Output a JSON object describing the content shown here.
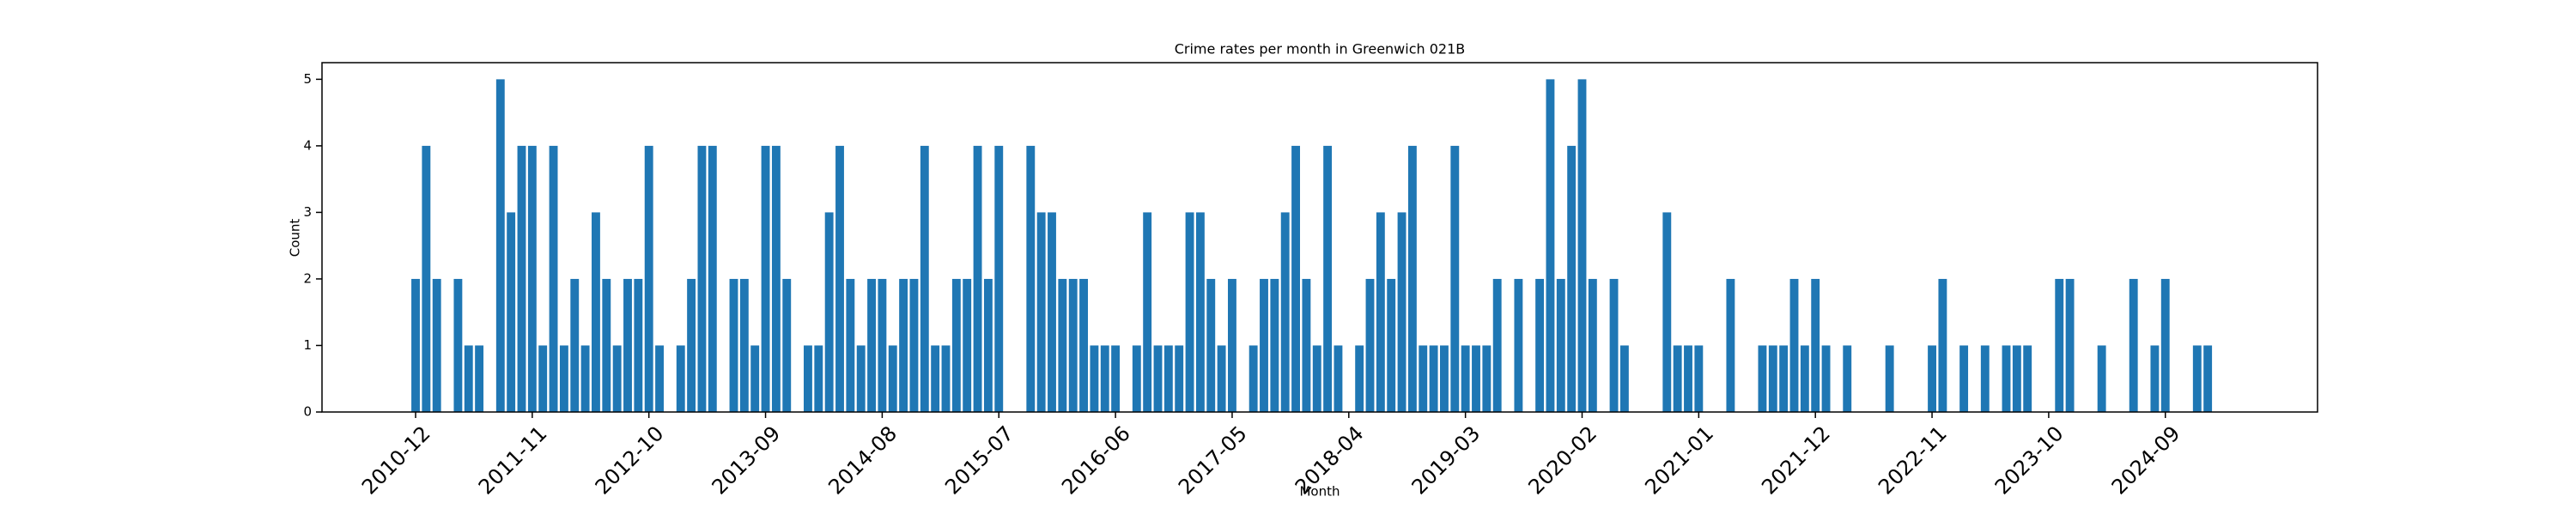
{
  "chart_data": {
    "type": "bar",
    "title": "Crime rates per month in Greenwich 021B",
    "x_label": "Month",
    "y_label": "Count",
    "color": "#1f77b4",
    "categories": [
      "2010-12",
      null,
      null,
      null,
      null,
      null,
      null,
      null,
      null,
      null,
      null,
      "2011-11",
      null,
      null,
      null,
      null,
      null,
      null,
      null,
      null,
      null,
      null,
      "2012-10",
      null,
      null,
      null,
      null,
      null,
      null,
      null,
      null,
      null,
      null,
      "2013-09",
      null,
      null,
      null,
      null,
      null,
      null,
      null,
      null,
      null,
      null,
      "2014-08",
      null,
      null,
      null,
      null,
      null,
      null,
      null,
      null,
      null,
      null,
      "2015-07",
      null,
      null,
      null,
      null,
      null,
      null,
      null,
      null,
      null,
      null,
      "2016-06",
      null,
      null,
      null,
      null,
      null,
      null,
      null,
      null,
      null,
      null,
      "2017-05",
      null,
      null,
      null,
      null,
      null,
      null,
      null,
      null,
      null,
      null,
      "2018-04",
      null,
      null,
      null,
      null,
      null,
      null,
      null,
      null,
      null,
      null,
      "2019-03",
      null,
      null,
      null,
      null,
      null,
      null,
      null,
      null,
      null,
      null,
      "2020-02",
      null,
      null,
      null,
      null,
      null,
      null,
      null,
      null,
      null,
      null,
      "2021-01",
      null,
      null,
      null,
      null,
      null,
      null,
      null,
      null,
      null,
      null,
      "2021-12",
      null,
      null,
      null,
      null,
      null,
      null,
      null,
      null,
      null,
      null,
      "2022-11",
      null,
      null,
      null,
      null,
      null,
      null,
      null,
      null,
      null,
      null,
      "2023-10",
      null,
      null,
      null,
      null,
      null,
      null,
      null,
      null,
      null,
      null,
      "2024-09",
      null,
      null,
      null,
      null
    ],
    "values": [
      2,
      4,
      2,
      0,
      2,
      1,
      1,
      0,
      5,
      3,
      4,
      4,
      1,
      4,
      1,
      2,
      1,
      3,
      2,
      1,
      2,
      2,
      4,
      1,
      0,
      1,
      2,
      4,
      4,
      0,
      2,
      2,
      1,
      4,
      4,
      2,
      0,
      1,
      1,
      3,
      4,
      2,
      1,
      2,
      2,
      1,
      2,
      2,
      4,
      1,
      1,
      2,
      2,
      4,
      2,
      4,
      0,
      0,
      4,
      3,
      3,
      2,
      2,
      2,
      1,
      1,
      1,
      0,
      1,
      3,
      1,
      1,
      1,
      3,
      3,
      2,
      1,
      2,
      0,
      1,
      2,
      2,
      3,
      4,
      2,
      1,
      4,
      1,
      0,
      1,
      2,
      3,
      2,
      3,
      4,
      1,
      1,
      1,
      4,
      1,
      1,
      1,
      2,
      0,
      2,
      0,
      2,
      5,
      2,
      4,
      5,
      2,
      0,
      2,
      1,
      0,
      0,
      0,
      3,
      1,
      1,
      1,
      0,
      0,
      2,
      0,
      0,
      1,
      1,
      1,
      2,
      1,
      2,
      1,
      0,
      1,
      0,
      0,
      0,
      1,
      0,
      0,
      0,
      1,
      2,
      0,
      1,
      0,
      1,
      0,
      1,
      1,
      1,
      0,
      0,
      2,
      2,
      0,
      0,
      1,
      0,
      0,
      2,
      0,
      1,
      2,
      0,
      0,
      1,
      1
    ],
    "ylim": [
      0,
      5.25
    ],
    "yticks": [
      0,
      1,
      2,
      3,
      4,
      5
    ]
  }
}
